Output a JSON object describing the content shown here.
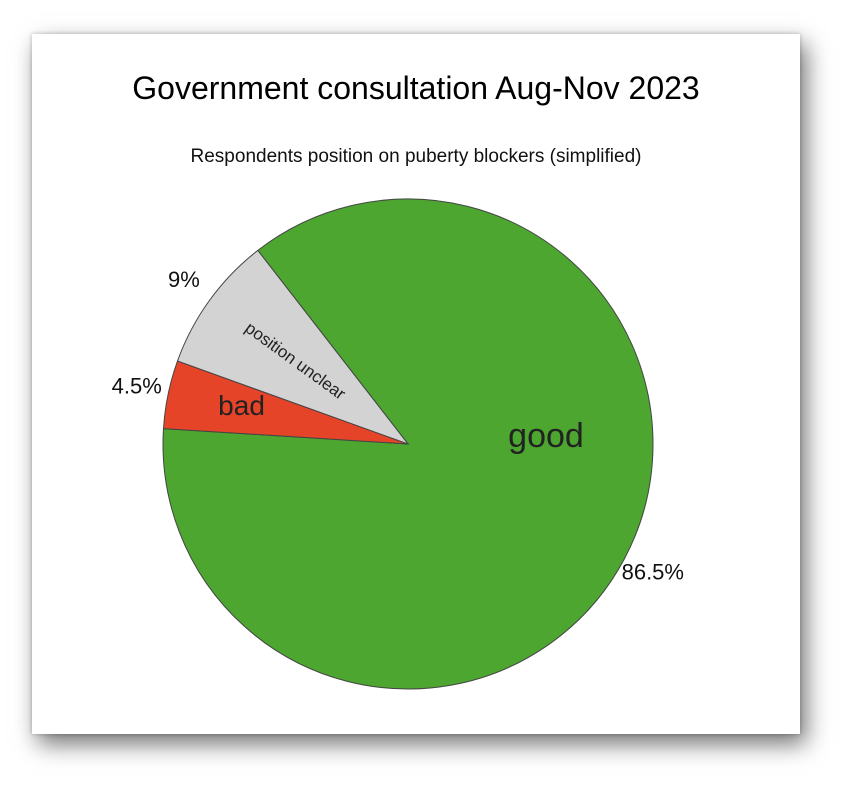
{
  "chart_data": {
    "type": "pie",
    "title": "Government consultation Aug-Nov 2023",
    "subtitle": "Respondents position on puberty blockers (simplified)",
    "slices": [
      {
        "label": "good",
        "value": 86.5,
        "pct_label": "86.5%",
        "color": "#4ca630"
      },
      {
        "label": "bad",
        "value": 4.5,
        "pct_label": "4.5%",
        "color": "#e64429"
      },
      {
        "label": "position unclear",
        "value": 9,
        "pct_label": "9%",
        "color": "#d3d3d3"
      }
    ]
  }
}
